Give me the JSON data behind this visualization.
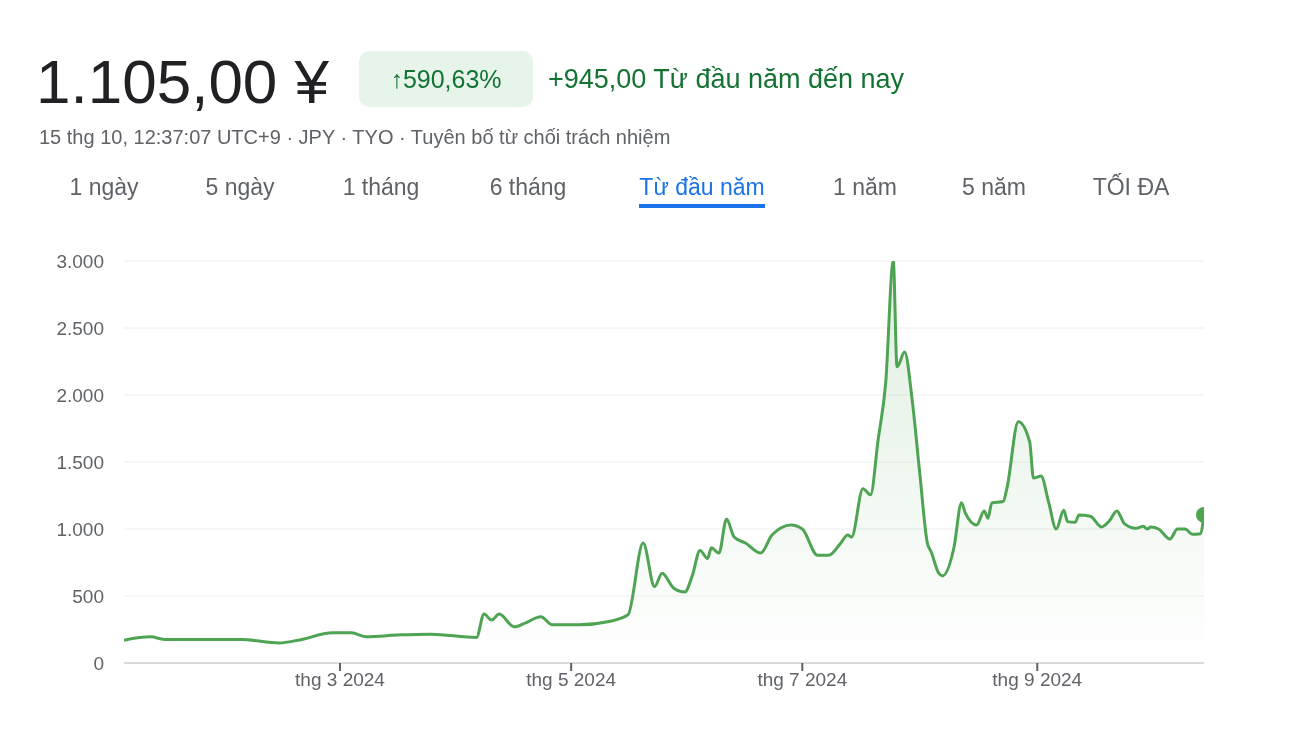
{
  "chart_data": {
    "type": "area",
    "title": "1.105,00 ¥",
    "subtitle": "15 thg 10, 12:37:07 UTC+9 · JPY · TYO · Tuyên bố từ chối trách nhiệm",
    "annotations": [
      "↑590,63%",
      "+945,00 Từ đầu năm đến nay",
      "1 ngày",
      "5 ngày",
      "1 tháng",
      "6 tháng",
      "Từ đầu năm",
      "1 năm",
      "5 năm",
      "TỐI ĐA"
    ],
    "x": [
      "2024-01-04",
      "2024-01-11",
      "2024-01-15",
      "2024-02-04",
      "2024-02-14",
      "2024-02-19",
      "2024-02-28",
      "2024-03-04",
      "2024-03-08",
      "2024-03-17",
      "2024-03-25",
      "2024-04-06",
      "2024-04-08",
      "2024-04-10",
      "2024-04-12",
      "2024-04-16",
      "2024-04-19",
      "2024-04-23",
      "2024-04-26",
      "2024-05-03",
      "2024-05-11",
      "2024-05-16",
      "2024-05-20",
      "2024-05-23",
      "2024-05-25",
      "2024-05-28",
      "2024-05-31",
      "2024-06-02",
      "2024-06-04",
      "2024-06-06",
      "2024-06-07",
      "2024-06-09",
      "2024-06-11",
      "2024-06-13",
      "2024-06-16",
      "2024-06-20",
      "2024-06-23",
      "2024-06-28",
      "2024-07-01",
      "2024-07-05",
      "2024-07-08",
      "2024-07-11",
      "2024-07-13",
      "2024-07-14",
      "2024-07-17",
      "2024-07-19",
      "2024-07-21",
      "2024-07-23",
      "2024-07-25",
      "2024-07-26",
      "2024-07-28",
      "2024-07-30",
      "2024-08-01",
      "2024-08-03",
      "2024-08-04",
      "2024-08-06",
      "2024-08-07",
      "2024-08-10",
      "2024-08-12",
      "2024-08-13",
      "2024-08-16",
      "2024-08-18",
      "2024-08-19",
      "2024-08-20",
      "2024-08-23",
      "2024-08-24",
      "2024-08-27",
      "2024-08-30",
      "2024-08-31",
      "2024-09-02",
      "2024-09-04",
      "2024-09-06",
      "2024-09-08",
      "2024-09-09",
      "2024-09-11",
      "2024-09-12",
      "2024-09-15",
      "2024-09-18",
      "2024-09-20",
      "2024-09-22",
      "2024-09-24",
      "2024-09-27",
      "2024-09-29",
      "2024-09-30",
      "2024-10-01",
      "2024-10-03",
      "2024-10-06",
      "2024-10-08",
      "2024-10-10",
      "2024-10-12",
      "2024-10-14",
      "2024-10-15"
    ],
    "series": [
      {
        "color": "#4ea452",
        "values": [
          170,
          195,
          175,
          175,
          150,
          170,
          225,
          225,
          195,
          210,
          215,
          190,
          365,
          320,
          365,
          270,
          300,
          345,
          285,
          285,
          310,
          360,
          895,
          570,
          670,
          560,
          530,
          655,
          840,
          780,
          860,
          820,
          1075,
          940,
          895,
          820,
          955,
          1030,
          1000,
          805,
          805,
          890,
          955,
          940,
          1300,
          1255,
          1665,
          2090,
          3000,
          2210,
          2320,
          1960,
          1415,
          895,
          830,
          670,
          650,
          860,
          1195,
          1120,
          1030,
          1135,
          1080,
          1195,
          1205,
          1305,
          1800,
          1650,
          1380,
          1395,
          1200,
          1000,
          1140,
          1055,
          1050,
          1105,
          1095,
          1015,
          1060,
          1135,
          1040,
          1005,
          1020,
          1000,
          1015,
          1000,
          925,
          1000,
          1000,
          960,
          965,
          1105
        ]
      }
    ],
    "xlim": [
      "2024-01-04",
      "2024-10-15"
    ],
    "xticks": [
      {
        "value": "2024-03-01",
        "label": "thg 3 2024"
      },
      {
        "value": "2024-05-01",
        "label": "thg 5 2024"
      },
      {
        "value": "2024-07-01",
        "label": "thg 7 2024"
      },
      {
        "value": "2024-09-01",
        "label": "thg 9 2024"
      }
    ],
    "ylim": [
      0,
      3000
    ],
    "yticks": [
      0,
      500,
      {
        "value": 1000,
        "label": "1.000"
      },
      {
        "value": 1500,
        "label": "1.500"
      },
      {
        "value": 2000,
        "label": "2.000"
      },
      {
        "value": 2500,
        "label": "2.500"
      },
      {
        "value": 3000,
        "label": "3.000"
      }
    ],
    "grid": "y",
    "marker": "none"
  }
}
